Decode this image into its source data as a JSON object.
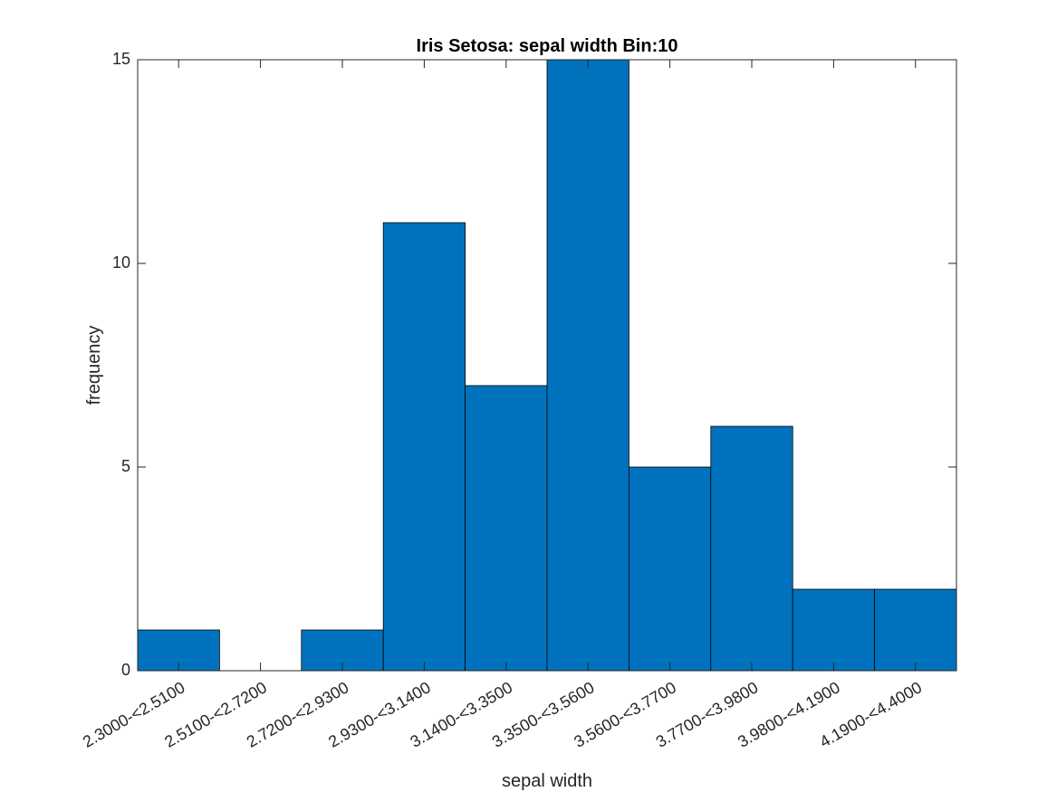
{
  "chart_data": {
    "type": "bar",
    "title": "Iris Setosa: sepal width Bin:10",
    "xlabel": "sepal width",
    "ylabel": "frequency",
    "categories": [
      "2.3000-<2.5100",
      "2.5100-<2.7200",
      "2.7200-<2.9300",
      "2.9300-<3.1400",
      "3.1400-<3.3500",
      "3.3500-<3.5600",
      "3.5600-<3.7700",
      "3.7700-<3.9800",
      "3.9800-<4.1900",
      "4.1900-<4.4000"
    ],
    "values": [
      1,
      0,
      1,
      11,
      7,
      15,
      5,
      6,
      2,
      2
    ],
    "ylim": [
      0,
      15
    ],
    "yticks": [
      0,
      5,
      10,
      15
    ],
    "grid": false,
    "bar_color": "#0072BD",
    "edge_color": "#000000"
  }
}
